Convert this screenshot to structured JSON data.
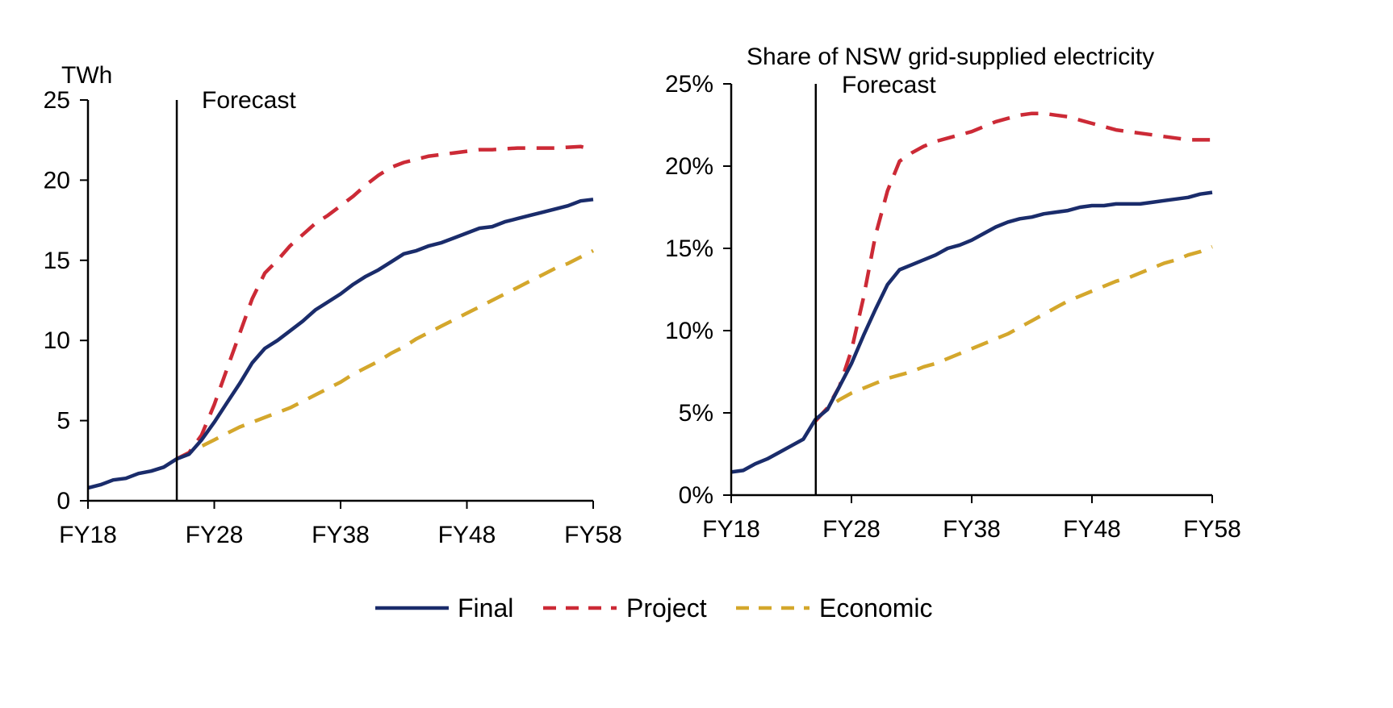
{
  "chart_data": [
    {
      "type": "line",
      "title": "",
      "ylabel": "TWh",
      "xlabel": "",
      "x_tick_labels": [
        "FY18",
        "FY28",
        "FY38",
        "FY48",
        "FY58"
      ],
      "x_tick_values": [
        2018,
        2028,
        2038,
        2048,
        2058
      ],
      "xlim": [
        2018,
        2058
      ],
      "y_ticks": [
        "0",
        "5",
        "10",
        "15",
        "20",
        "25"
      ],
      "ylim": [
        0,
        25
      ],
      "forecast_label": "Forecast",
      "forecast_start": 2025,
      "series": [
        {
          "name": "Final",
          "x": [
            2018,
            2019,
            2020,
            2021,
            2022,
            2023,
            2024,
            2025,
            2026,
            2027,
            2028,
            2029,
            2030,
            2031,
            2032,
            2033,
            2034,
            2035,
            2036,
            2037,
            2038,
            2039,
            2040,
            2041,
            2042,
            2043,
            2044,
            2045,
            2046,
            2047,
            2048,
            2049,
            2050,
            2051,
            2052,
            2053,
            2054,
            2055,
            2056,
            2057,
            2058
          ],
          "values": [
            0.8,
            1.0,
            1.3,
            1.4,
            1.7,
            1.85,
            2.1,
            2.6,
            2.9,
            3.8,
            4.9,
            6.1,
            7.3,
            8.6,
            9.5,
            10.0,
            10.6,
            11.2,
            11.9,
            12.4,
            12.9,
            13.5,
            14.0,
            14.4,
            14.9,
            15.4,
            15.6,
            15.9,
            16.1,
            16.4,
            16.7,
            17.0,
            17.1,
            17.4,
            17.6,
            17.8,
            18.0,
            18.2,
            18.4,
            18.7,
            18.8
          ]
        },
        {
          "name": "Project",
          "x": [
            2025,
            2026,
            2027,
            2028,
            2029,
            2030,
            2031,
            2032,
            2033,
            2034,
            2035,
            2036,
            2037,
            2038,
            2039,
            2040,
            2041,
            2042,
            2043,
            2044,
            2045,
            2046,
            2047,
            2048,
            2049,
            2050,
            2051,
            2052,
            2053,
            2054,
            2055,
            2056,
            2057,
            2058
          ],
          "values": [
            2.6,
            3.0,
            4.1,
            6.0,
            8.2,
            10.4,
            12.6,
            14.2,
            15.0,
            15.9,
            16.6,
            17.3,
            17.8,
            18.4,
            19.0,
            19.7,
            20.3,
            20.8,
            21.1,
            21.3,
            21.5,
            21.6,
            21.7,
            21.8,
            21.9,
            21.9,
            21.95,
            22.0,
            22.0,
            22.0,
            22.0,
            22.05,
            22.1,
            21.9
          ]
        },
        {
          "name": "Economic",
          "x": [
            2025,
            2026,
            2027,
            2028,
            2029,
            2030,
            2031,
            2032,
            2033,
            2034,
            2035,
            2036,
            2037,
            2038,
            2039,
            2040,
            2041,
            2042,
            2043,
            2044,
            2045,
            2046,
            2047,
            2048,
            2049,
            2050,
            2051,
            2052,
            2053,
            2054,
            2055,
            2056,
            2057,
            2058
          ],
          "values": [
            2.6,
            3.0,
            3.4,
            3.8,
            4.2,
            4.6,
            4.9,
            5.2,
            5.5,
            5.8,
            6.2,
            6.6,
            7.0,
            7.4,
            7.9,
            8.3,
            8.7,
            9.2,
            9.6,
            10.1,
            10.5,
            10.9,
            11.3,
            11.7,
            12.1,
            12.5,
            12.9,
            13.3,
            13.7,
            14.1,
            14.5,
            14.8,
            15.2,
            15.6
          ]
        }
      ]
    },
    {
      "type": "line",
      "title": "Share of NSW grid-supplied electricity",
      "ylabel": "",
      "xlabel": "",
      "x_tick_labels": [
        "FY18",
        "FY28",
        "FY38",
        "FY48",
        "FY58"
      ],
      "x_tick_values": [
        2018,
        2028,
        2038,
        2048,
        2058
      ],
      "xlim": [
        2018,
        2058
      ],
      "y_ticks": [
        "0%",
        "5%",
        "10%",
        "15%",
        "20%",
        "25%"
      ],
      "ylim": [
        0,
        25
      ],
      "forecast_label": "Forecast",
      "forecast_start": 2025,
      "series": [
        {
          "name": "Final",
          "x": [
            2018,
            2019,
            2020,
            2021,
            2022,
            2023,
            2024,
            2025,
            2026,
            2027,
            2028,
            2029,
            2030,
            2031,
            2032,
            2033,
            2034,
            2035,
            2036,
            2037,
            2038,
            2039,
            2040,
            2041,
            2042,
            2043,
            2044,
            2045,
            2046,
            2047,
            2048,
            2049,
            2050,
            2051,
            2052,
            2053,
            2054,
            2055,
            2056,
            2057,
            2058
          ],
          "values": [
            1.4,
            1.5,
            1.9,
            2.2,
            2.6,
            3.0,
            3.4,
            4.6,
            5.2,
            6.6,
            8.0,
            9.7,
            11.3,
            12.8,
            13.7,
            14.0,
            14.3,
            14.6,
            15.0,
            15.2,
            15.5,
            15.9,
            16.3,
            16.6,
            16.8,
            16.9,
            17.1,
            17.2,
            17.3,
            17.5,
            17.6,
            17.6,
            17.7,
            17.7,
            17.7,
            17.8,
            17.9,
            18.0,
            18.1,
            18.3,
            18.4
          ]
        },
        {
          "name": "Project",
          "x": [
            2025,
            2026,
            2027,
            2028,
            2029,
            2030,
            2031,
            2032,
            2033,
            2034,
            2035,
            2036,
            2037,
            2038,
            2039,
            2040,
            2041,
            2042,
            2043,
            2044,
            2045,
            2046,
            2047,
            2048,
            2049,
            2050,
            2051,
            2052,
            2053,
            2054,
            2055,
            2056,
            2057,
            2058
          ],
          "values": [
            4.5,
            5.3,
            6.6,
            8.8,
            12.0,
            15.8,
            18.5,
            20.3,
            20.8,
            21.2,
            21.5,
            21.7,
            21.9,
            22.1,
            22.4,
            22.7,
            22.9,
            23.1,
            23.2,
            23.2,
            23.1,
            23.0,
            22.8,
            22.6,
            22.4,
            22.2,
            22.1,
            22.0,
            21.9,
            21.8,
            21.7,
            21.6,
            21.6,
            21.6
          ]
        },
        {
          "name": "Economic",
          "x": [
            2025,
            2026,
            2027,
            2028,
            2029,
            2030,
            2031,
            2032,
            2033,
            2034,
            2035,
            2036,
            2037,
            2038,
            2039,
            2040,
            2041,
            2042,
            2043,
            2044,
            2045,
            2046,
            2047,
            2048,
            2049,
            2050,
            2051,
            2052,
            2053,
            2054,
            2055,
            2056,
            2057,
            2058
          ],
          "values": [
            4.5,
            5.3,
            5.8,
            6.2,
            6.5,
            6.8,
            7.1,
            7.3,
            7.5,
            7.8,
            8.0,
            8.3,
            8.6,
            8.9,
            9.2,
            9.5,
            9.8,
            10.2,
            10.6,
            11.0,
            11.4,
            11.8,
            12.1,
            12.4,
            12.7,
            13.0,
            13.2,
            13.5,
            13.8,
            14.1,
            14.3,
            14.6,
            14.8,
            15.1
          ]
        }
      ]
    }
  ],
  "legend": {
    "items": [
      {
        "name": "Final",
        "color": "#1a2c6b",
        "style": "solid"
      },
      {
        "name": "Project",
        "color": "#cc2a36",
        "style": "dashed"
      },
      {
        "name": "Economic",
        "color": "#d4a72c",
        "style": "dashed"
      }
    ]
  },
  "colors": {
    "Final": "#1a2c6b",
    "Project": "#cc2a36",
    "Economic": "#d4a72c",
    "axis": "#000000"
  }
}
